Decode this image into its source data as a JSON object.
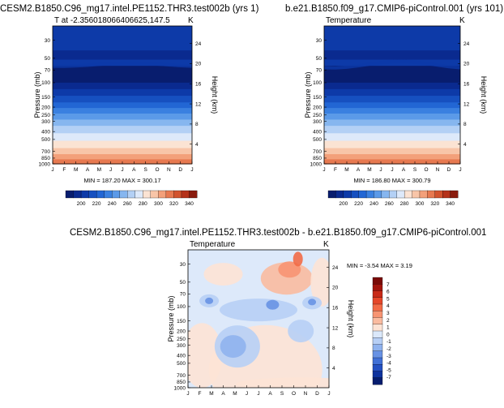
{
  "chart_data": [
    {
      "type": "heatmap",
      "title": "CESM2.B1850.C96_mg17.intel.PE1152.THR3.test002b (yrs 1)",
      "subtitle_left": "T at -2.356018066406625,147.5",
      "units": "K",
      "ylabel": "Pressure (mb)",
      "ylabel_right": "Height (km)",
      "x_ticks": [
        "J",
        "F",
        "M",
        "A",
        "M",
        "J",
        "J",
        "A",
        "S",
        "O",
        "N",
        "D",
        "J"
      ],
      "y_ticks": [
        "30",
        "50",
        "70",
        "100",
        "150",
        "200",
        "250",
        "300",
        "400",
        "500",
        "700",
        "850",
        "1000"
      ],
      "y_ticks_right": [
        "24",
        "20",
        "16",
        "12",
        "8",
        "4"
      ],
      "stats": "MIN = 187.20 MAX = 300.17",
      "min": 187.2,
      "max": 300.17,
      "colorbar_labels": [
        "200",
        "220",
        "240",
        "260",
        "280",
        "300",
        "320",
        "340"
      ],
      "levels": [
        190,
        200,
        210,
        220,
        230,
        240,
        250,
        260,
        270,
        280,
        290,
        300,
        310,
        320,
        330,
        340,
        350
      ]
    },
    {
      "type": "heatmap",
      "title": "b.e21.B1850.f09_g17.CMIP6-piControl.001 (yrs 101)",
      "subtitle_left": "Temperature",
      "units": "K",
      "ylabel": "Pressure (mb)",
      "ylabel_right": "Height (km)",
      "x_ticks": [
        "J",
        "F",
        "M",
        "A",
        "M",
        "J",
        "J",
        "A",
        "S",
        "O",
        "N",
        "D",
        "J"
      ],
      "y_ticks": [
        "30",
        "50",
        "70",
        "100",
        "150",
        "200",
        "250",
        "300",
        "400",
        "500",
        "700",
        "850",
        "1000"
      ],
      "y_ticks_right": [
        "24",
        "20",
        "16",
        "12",
        "8",
        "4"
      ],
      "stats": "MIN = 186.80 MAX = 300.79",
      "min": 186.8,
      "max": 300.79,
      "colorbar_labels": [
        "200",
        "220",
        "240",
        "260",
        "280",
        "300",
        "320",
        "340"
      ],
      "levels": [
        190,
        200,
        210,
        220,
        230,
        240,
        250,
        260,
        270,
        280,
        290,
        300,
        310,
        320,
        330,
        340,
        350
      ]
    },
    {
      "type": "heatmap",
      "title": "CESM2.B1850.C96_mg17.intel.PE1152.THR3.test002b - b.e21.B1850.f09_g17.CMIP6-piControl.001",
      "subtitle_left": "Temperature",
      "units": "K",
      "ylabel": "Pressure (mb)",
      "ylabel_right": "Height (km)",
      "x_ticks": [
        "J",
        "F",
        "M",
        "A",
        "M",
        "J",
        "J",
        "A",
        "S",
        "O",
        "N",
        "D",
        "J"
      ],
      "y_ticks": [
        "30",
        "50",
        "70",
        "100",
        "150",
        "200",
        "250",
        "300",
        "400",
        "500",
        "700",
        "850",
        "1000"
      ],
      "y_ticks_right": [
        "24",
        "20",
        "16",
        "12",
        "8",
        "4"
      ],
      "stats": "MIN =  -3.54 MAX =   3.19",
      "min": -3.54,
      "max": 3.19,
      "colorbar_labels": [
        "7",
        "6",
        "5",
        "4",
        "3",
        "2",
        "1",
        "0",
        "-1",
        "-2",
        "-3",
        "-4",
        "-5",
        "-7"
      ]
    }
  ],
  "colors": {
    "abs_scale": [
      "#081d6e",
      "#0a2a8f",
      "#0d3aa8",
      "#1650c0",
      "#2266d4",
      "#3a80e0",
      "#5b9ae8",
      "#86b6ef",
      "#b3d0f5",
      "#dde9fa",
      "#fbe3d3",
      "#f8c5a8",
      "#f3a07a",
      "#e77950",
      "#d2532e",
      "#b5321a",
      "#8a1c0e"
    ],
    "diff_scale": [
      "#7a0a06",
      "#a3140c",
      "#c82a18",
      "#e5472a",
      "#f26b47",
      "#f79472",
      "#fabba0",
      "#fde3d5",
      "#dbe8fa",
      "#b7cff5",
      "#8fb2ee",
      "#6892e4",
      "#4170d6",
      "#2450c2",
      "#0f339e",
      "#061d6e"
    ]
  }
}
